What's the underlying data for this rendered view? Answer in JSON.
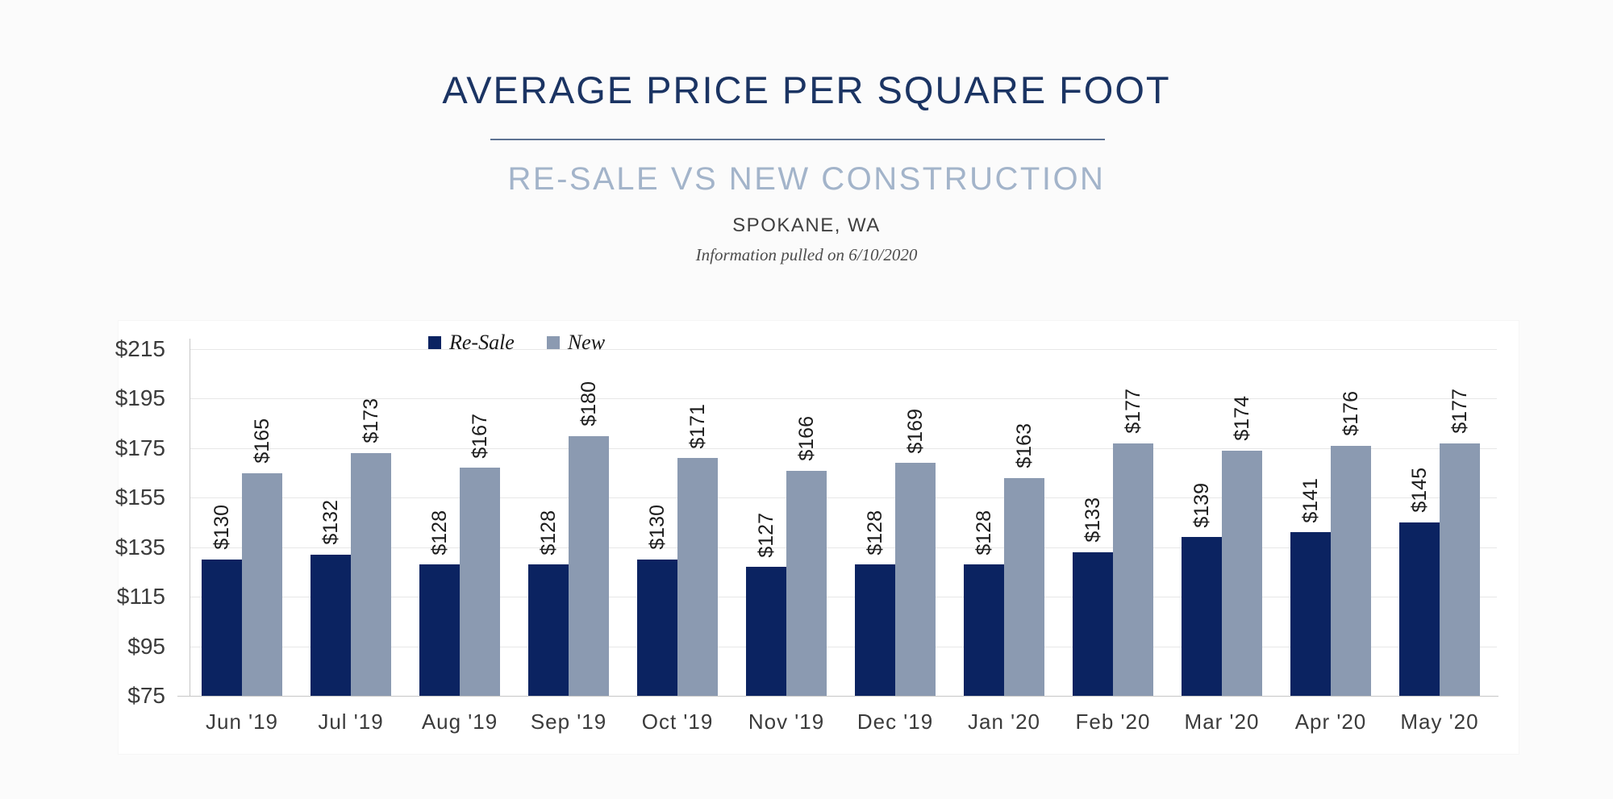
{
  "header": {
    "title": "AVERAGE PRICE PER SQUARE FOOT",
    "subtitle": "RE-SALE VS NEW CONSTRUCTION",
    "location": "SPOKANE, WA",
    "note": "Information pulled on 6/10/2020"
  },
  "colors": {
    "title": "#1b3463",
    "subtitle": "#a3b4ca",
    "divider": "#5d7292",
    "resale_bar": "#0b2361",
    "new_bar": "#8b9ab1",
    "gridline": "#e7e7e7"
  },
  "chart_data": {
    "type": "bar",
    "title": "Average Price Per Square Foot",
    "subtitle": "Re-Sale vs New Construction",
    "region": "Spokane, WA",
    "categories": [
      "Jun '19",
      "Jul '19",
      "Aug '19",
      "Sep '19",
      "Oct '19",
      "Nov '19",
      "Dec '19",
      "Jan '20",
      "Feb '20",
      "Mar '20",
      "Apr '20",
      "May '20"
    ],
    "series": [
      {
        "name": "Re-Sale",
        "color": "#0b2361",
        "values": [
          130,
          132,
          128,
          128,
          130,
          127,
          128,
          128,
          133,
          139,
          141,
          145
        ],
        "labels": [
          "$130",
          "$132",
          "$128",
          "$128",
          "$130",
          "$127",
          "$128",
          "$128",
          "$133",
          "$139",
          "$141",
          "$145"
        ]
      },
      {
        "name": "New",
        "color": "#8b9ab1",
        "values": [
          165,
          173,
          167,
          180,
          171,
          166,
          169,
          163,
          177,
          174,
          176,
          177
        ],
        "labels": [
          "$165",
          "$173",
          "$167",
          "$180",
          "$171",
          "$166",
          "$169",
          "$163",
          "$177",
          "$174",
          "$176",
          "$177"
        ]
      }
    ],
    "ylim": [
      75,
      215
    ],
    "yticks": {
      "values": [
        75,
        95,
        115,
        135,
        155,
        175,
        195,
        215
      ],
      "labels": [
        "$75",
        "$95",
        "$115",
        "$135",
        "$155",
        "$175",
        "$195",
        "$215"
      ]
    },
    "grid": true,
    "legend_position": "top-left-inside",
    "value_prefix": "$"
  }
}
